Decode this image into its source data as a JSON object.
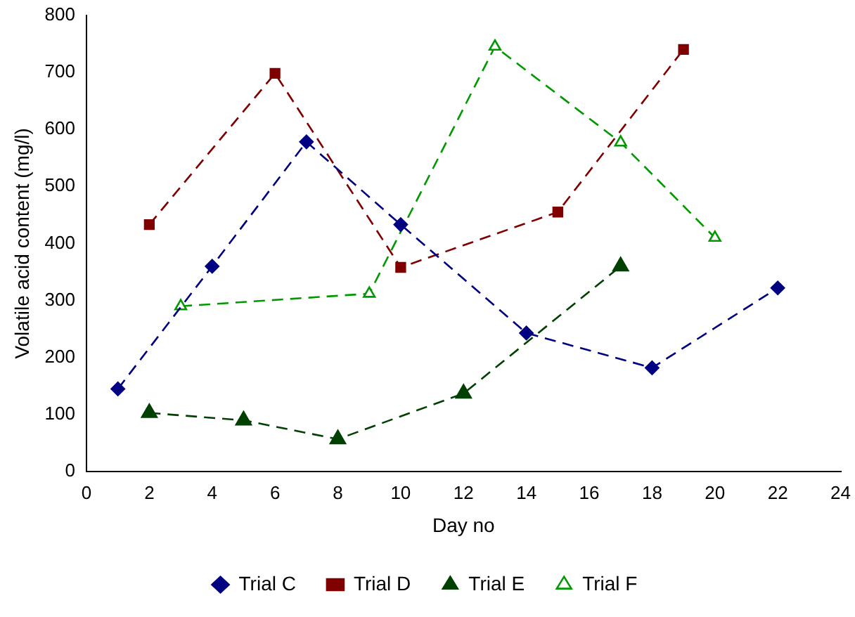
{
  "chart_data": {
    "type": "line",
    "xlabel": "Day no",
    "ylabel": "Volatile acid content (mg/l)",
    "xlim": [
      0,
      24
    ],
    "xticks": [
      0,
      2,
      4,
      6,
      8,
      10,
      12,
      14,
      16,
      18,
      20,
      22,
      24
    ],
    "ylim": [
      0,
      800
    ],
    "yticks": [
      0,
      100,
      200,
      300,
      400,
      500,
      600,
      700,
      800
    ],
    "grid": false,
    "legend": "bottom",
    "line_style": "dashed",
    "series": [
      {
        "name": "Trial C",
        "color": "#000080",
        "marker": "diamond",
        "x": [
          1,
          4,
          7,
          10,
          14,
          18,
          22
        ],
        "values": [
          145,
          360,
          578,
          433,
          243,
          182,
          322
        ]
      },
      {
        "name": "Trial D",
        "color": "#800000",
        "marker": "square",
        "x": [
          2,
          6,
          10,
          15,
          19
        ],
        "values": [
          433,
          698,
          358,
          455,
          740
        ]
      },
      {
        "name": "Trial E",
        "color": "#004000",
        "marker": "triangle",
        "x": [
          2,
          5,
          8,
          12,
          17
        ],
        "values": [
          103,
          90,
          57,
          137,
          360
        ]
      },
      {
        "name": "Trial F",
        "color": "#009900",
        "marker": "triangle-open",
        "x": [
          3,
          9,
          13,
          17,
          20
        ],
        "values": [
          290,
          312,
          745,
          577,
          410
        ]
      }
    ]
  }
}
